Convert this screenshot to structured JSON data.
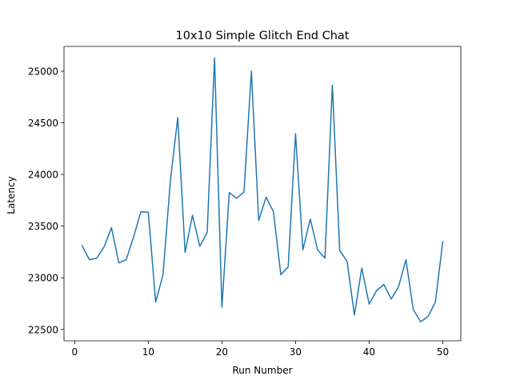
{
  "chart_data": {
    "type": "line",
    "title": "10x10 Simple Glitch End Chat",
    "xlabel": "Run Number",
    "ylabel": "Latency",
    "xlim": [
      -1.45,
      52.45
    ],
    "ylim": [
      22390,
      25240
    ],
    "xticks": [
      0,
      10,
      20,
      30,
      40,
      50
    ],
    "yticks": [
      22500,
      23000,
      23500,
      24000,
      24500,
      25000
    ],
    "grid": false,
    "series": [
      {
        "color": "#1f77b4",
        "x": [
          1,
          2,
          3,
          4,
          5,
          6,
          7,
          8,
          9,
          10,
          11,
          12,
          13,
          14,
          15,
          16,
          17,
          18,
          19,
          20,
          21,
          22,
          23,
          24,
          25,
          26,
          27,
          28,
          29,
          30,
          31,
          32,
          33,
          34,
          35,
          36,
          37,
          38,
          39,
          40,
          41,
          42,
          43,
          44,
          45,
          46,
          47,
          48,
          49,
          50
        ],
        "y": [
          23310,
          23175,
          23190,
          23300,
          23485,
          23145,
          23175,
          23395,
          23640,
          23635,
          22765,
          23030,
          23940,
          24550,
          23245,
          23605,
          23305,
          23440,
          25130,
          22715,
          23825,
          23770,
          23830,
          25000,
          23555,
          23780,
          23640,
          23030,
          23105,
          24395,
          23270,
          23570,
          23270,
          23190,
          24865,
          23265,
          23160,
          22640,
          23095,
          22745,
          22875,
          22935,
          22795,
          22915,
          23175,
          22690,
          22575,
          22625,
          22765,
          23350
        ]
      }
    ]
  }
}
